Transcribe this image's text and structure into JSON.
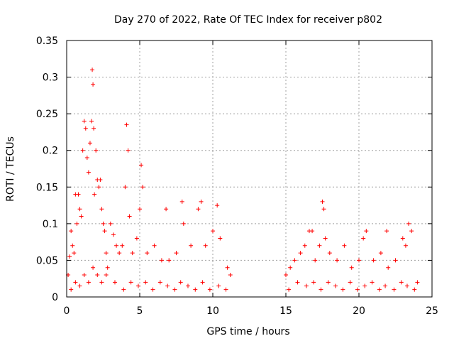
{
  "chart_data": {
    "type": "scatter",
    "title": "Day 270 of 2022, Rate Of TEC Index for receiver p802",
    "xlabel": "GPS time / hours",
    "ylabel": "ROTI / TECUs",
    "xlim": [
      0,
      25
    ],
    "ylim": [
      0,
      0.35
    ],
    "x_ticks": [
      "0",
      "5",
      "10",
      "15",
      "20",
      "25"
    ],
    "y_ticks": [
      "0",
      "0.05",
      "0.1",
      "0.15",
      "0.2",
      "0.25",
      "0.3",
      "0.35"
    ],
    "grid": true,
    "marker": "+",
    "color": "#ff0000",
    "series": [
      {
        "x": [
          0.1,
          0.2,
          0.3,
          0.4,
          0.5,
          0.6,
          0.7,
          0.8,
          0.9,
          1.0,
          1.1,
          1.2,
          1.3,
          1.4,
          1.5,
          1.6,
          1.7,
          1.75,
          1.8,
          1.85,
          1.9,
          2.0,
          2.1,
          2.2,
          2.3,
          2.4,
          2.5,
          2.6,
          2.7,
          2.8,
          3.0,
          3.2,
          3.4,
          3.6,
          3.8,
          4.0,
          4.1,
          4.2,
          4.3,
          4.5,
          4.8,
          5.0,
          5.1,
          5.2,
          5.5,
          6.0,
          6.5,
          6.8,
          7.0,
          7.5,
          7.9,
          8.0,
          8.5,
          9.0,
          9.2,
          9.5,
          10.0,
          10.3,
          10.5,
          11.0,
          11.2,
          15.0,
          15.3,
          15.6,
          16.0,
          16.3,
          16.6,
          16.8,
          17.0,
          17.3,
          17.5,
          17.6,
          17.7,
          18.0,
          18.5,
          19.0,
          19.5,
          20.0,
          20.3,
          20.5,
          21.0,
          21.5,
          21.9,
          22.0,
          22.5,
          23.0,
          23.2,
          23.4,
          23.6,
          24.0,
          0.3,
          0.6,
          0.9,
          1.2,
          1.5,
          1.8,
          2.1,
          2.4,
          2.7,
          3.3,
          3.9,
          4.4,
          4.9,
          5.4,
          5.9,
          6.4,
          6.9,
          7.4,
          7.8,
          8.3,
          8.8,
          9.3,
          9.8,
          10.4,
          10.9,
          15.2,
          15.8,
          16.4,
          16.9,
          17.4,
          17.9,
          18.4,
          18.9,
          19.4,
          19.9,
          20.4,
          20.9,
          21.4,
          21.8,
          22.4,
          22.9,
          23.3,
          23.8
        ],
        "y": [
          0.03,
          0.055,
          0.09,
          0.07,
          0.06,
          0.14,
          0.1,
          0.14,
          0.12,
          0.11,
          0.2,
          0.24,
          0.23,
          0.19,
          0.17,
          0.21,
          0.24,
          0.31,
          0.29,
          0.23,
          0.14,
          0.2,
          0.16,
          0.15,
          0.16,
          0.12,
          0.1,
          0.09,
          0.06,
          0.04,
          0.1,
          0.085,
          0.07,
          0.06,
          0.07,
          0.15,
          0.235,
          0.2,
          0.11,
          0.06,
          0.08,
          0.12,
          0.18,
          0.15,
          0.06,
          0.07,
          0.05,
          0.12,
          0.05,
          0.06,
          0.13,
          0.1,
          0.07,
          0.12,
          0.13,
          0.07,
          0.09,
          0.125,
          0.08,
          0.04,
          0.03,
          0.03,
          0.04,
          0.05,
          0.06,
          0.07,
          0.09,
          0.09,
          0.05,
          0.07,
          0.13,
          0.12,
          0.08,
          0.06,
          0.05,
          0.07,
          0.04,
          0.05,
          0.08,
          0.09,
          0.05,
          0.06,
          0.09,
          0.04,
          0.05,
          0.08,
          0.07,
          0.1,
          0.09,
          0.02,
          0.01,
          0.02,
          0.015,
          0.03,
          0.02,
          0.04,
          0.03,
          0.02,
          0.03,
          0.02,
          0.01,
          0.02,
          0.015,
          0.02,
          0.01,
          0.02,
          0.015,
          0.01,
          0.02,
          0.015,
          0.01,
          0.02,
          0.01,
          0.015,
          0.01,
          0.01,
          0.02,
          0.015,
          0.02,
          0.01,
          0.02,
          0.015,
          0.01,
          0.02,
          0.01,
          0.015,
          0.02,
          0.01,
          0.015,
          0.01,
          0.02,
          0.015,
          0.01
        ]
      }
    ]
  }
}
